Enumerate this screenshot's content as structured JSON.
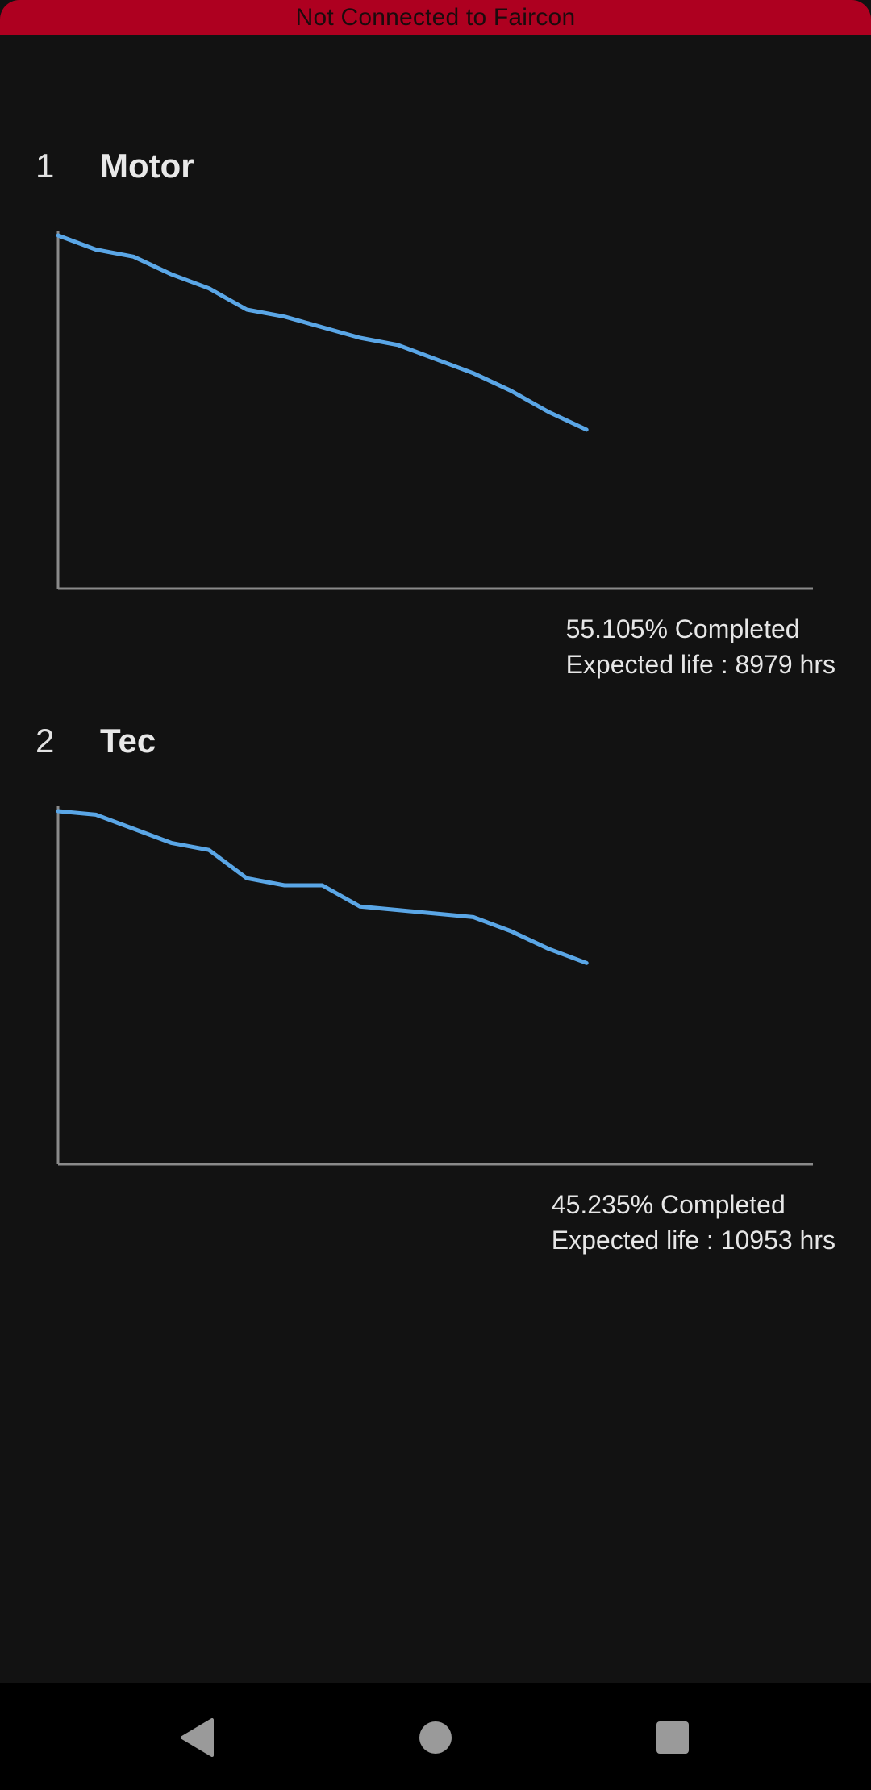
{
  "banner": {
    "text": "Not Connected to Faircon",
    "color": "#ae0020"
  },
  "components": [
    {
      "index": "1",
      "name": "Motor",
      "completed_text": "55.105% Completed",
      "expected_life_text": "Expected life : 8979 hrs",
      "completed_pct": 55.105,
      "expected_life_hrs": 8979
    },
    {
      "index": "2",
      "name": "Tec",
      "completed_text": "45.235% Completed",
      "expected_life_text": "Expected life : 10953 hrs",
      "completed_pct": 45.235,
      "expected_life_hrs": 10953
    }
  ],
  "chart_data": [
    {
      "type": "line",
      "series": [
        {
          "values": [
            100,
            96,
            94,
            89,
            85,
            79,
            77,
            74,
            71,
            69,
            65,
            61,
            56,
            50,
            45
          ]
        }
      ],
      "ylim": [
        0,
        100
      ],
      "x_count": 20,
      "line_color": "#5aa6e6",
      "axis_color": "#8a8a8a",
      "grid": false
    },
    {
      "type": "line",
      "series": [
        {
          "values": [
            100,
            99,
            95,
            91,
            89,
            81,
            79,
            79,
            73,
            72,
            71,
            70,
            66,
            61,
            57
          ]
        }
      ],
      "ylim": [
        0,
        100
      ],
      "x_count": 20,
      "line_color": "#5aa6e6",
      "axis_color": "#8a8a8a",
      "grid": false
    }
  ],
  "nav": {
    "back_icon": "back-triangle-icon",
    "home_icon": "home-circle-icon",
    "recents_icon": "recents-square-icon"
  }
}
